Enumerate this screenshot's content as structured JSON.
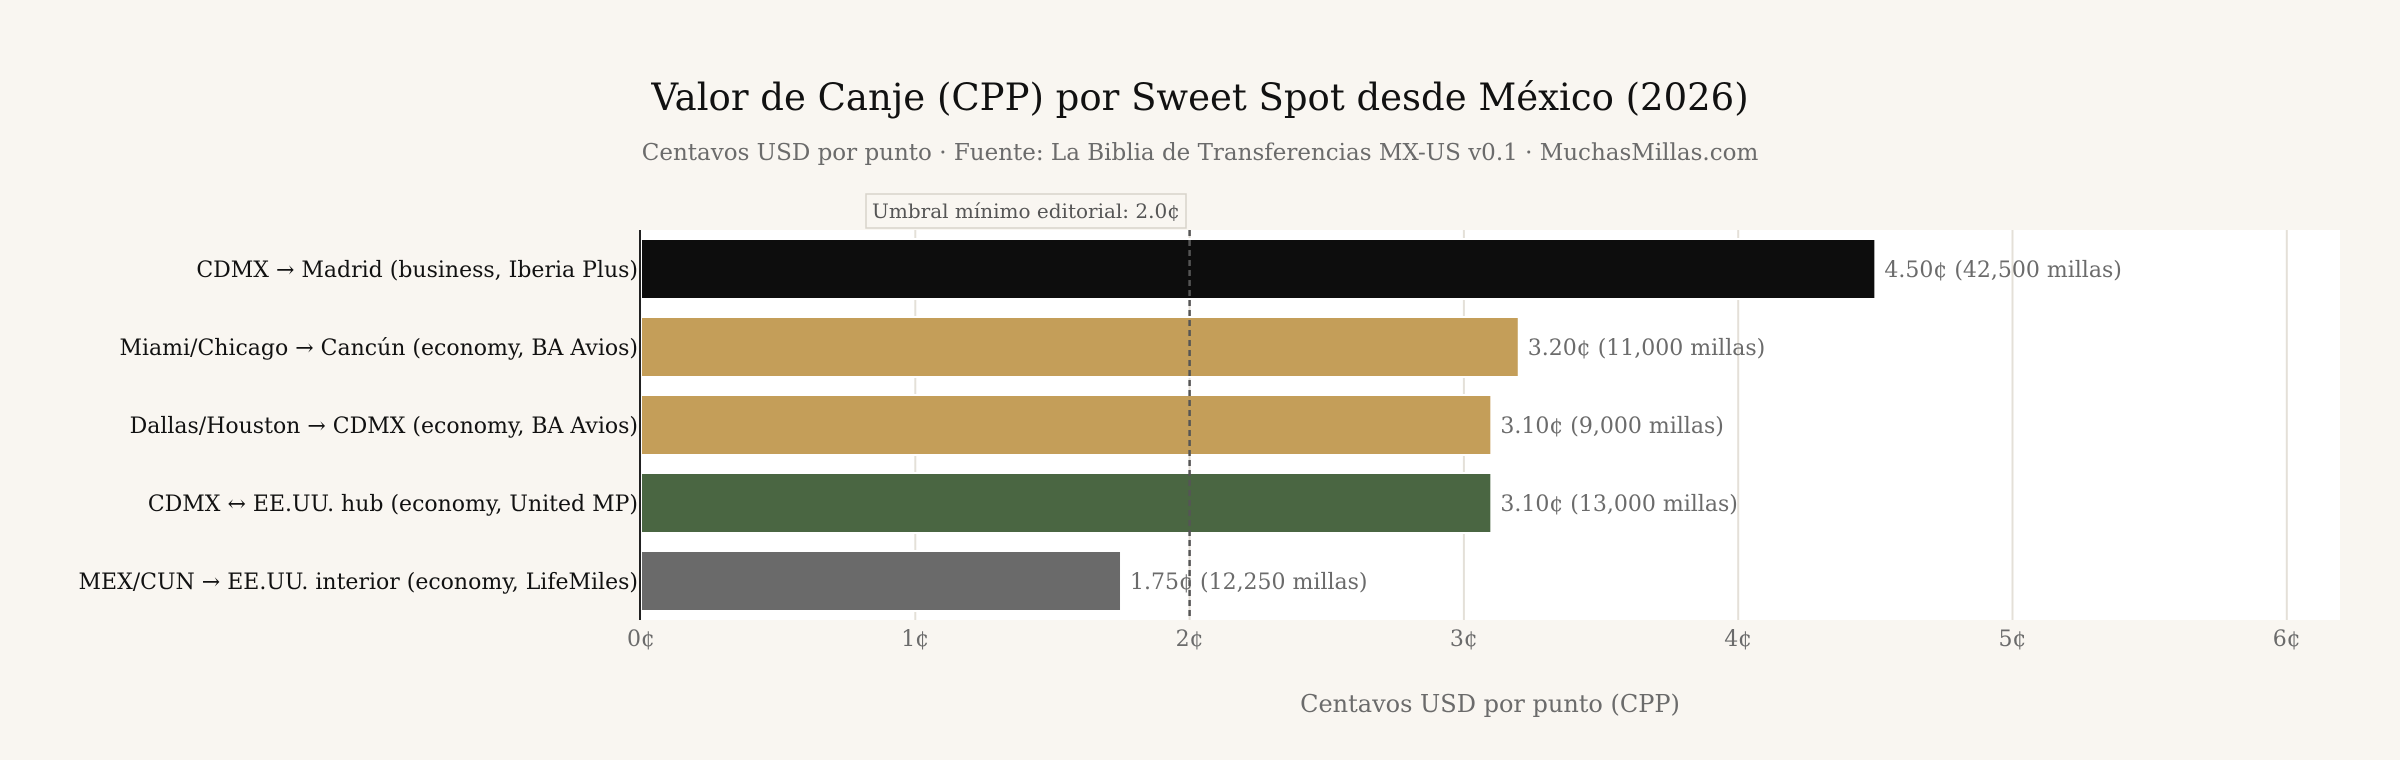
{
  "chart_data": {
    "type": "bar",
    "orientation": "horizontal",
    "title": "Valor de Canje (CPP) por Sweet Spot desde México (2026)",
    "subtitle": "Centavos USD por punto · Fuente: La Biblia de Transferencias MX-US v0.1 · MuchasMillas.com",
    "xlabel": "Centavos USD por punto (CPP)",
    "ylabel": "",
    "xlim": [
      0,
      6.2
    ],
    "x_ticks": [
      0,
      1,
      2,
      3,
      4,
      5,
      6
    ],
    "x_tick_labels": [
      "0¢",
      "1¢",
      "2¢",
      "3¢",
      "4¢",
      "5¢",
      "6¢"
    ],
    "grid": "vertical",
    "categories": [
      "CDMX → Madrid (business, Iberia Plus)",
      "Miami/Chicago → Cancún (economy, BA Avios)",
      "Dallas/Houston → CDMX (economy, BA Avios)",
      "CDMX ↔ EE.UU. hub (economy, United MP)",
      "MEX/CUN → EE.UU. interior (economy, LifeMiles)"
    ],
    "values": [
      4.5,
      3.2,
      3.1,
      3.1,
      1.75
    ],
    "bar_labels": [
      "4.50¢  (42,500 millas)",
      "3.20¢  (11,000 millas)",
      "3.10¢  (9,000 millas)",
      "3.10¢  (13,000 millas)",
      "1.75¢  (12,250 millas)"
    ],
    "bar_colors": [
      "#0d0d0d",
      "#c49e59",
      "#c49e59",
      "#4a6642",
      "#6a6a6a"
    ],
    "threshold": {
      "value": 2.0,
      "label": "Umbral mínimo editorial: 2.0¢"
    }
  },
  "colors": {
    "background": "#f9f6f1",
    "plot_background": "#ffffff",
    "grid": "#e4e0d8",
    "threshold_line": "#555555"
  }
}
